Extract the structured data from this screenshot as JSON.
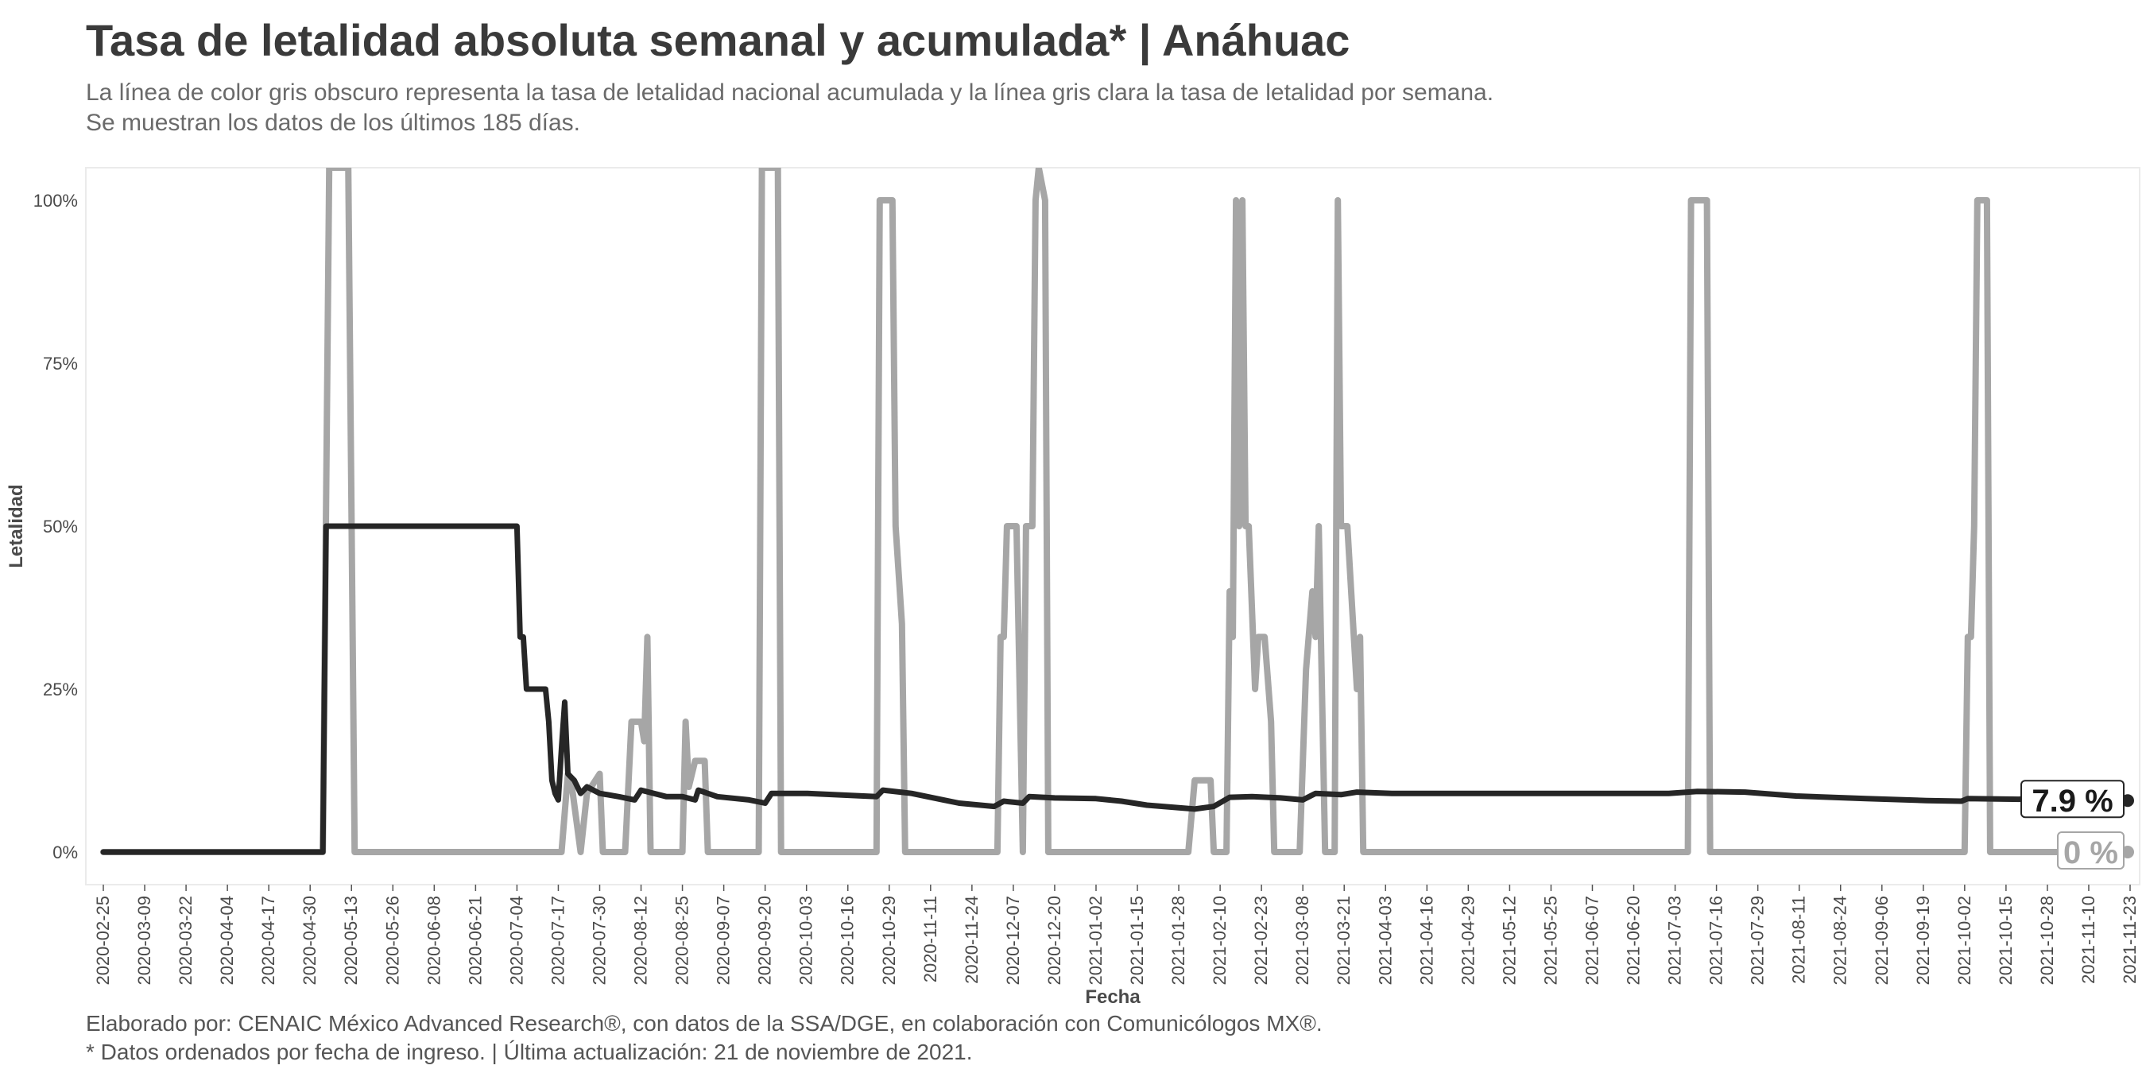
{
  "header": {
    "title": "Tasa de letalidad absoluta semanal y acumulada* | Anáhuac",
    "subtitle_line1": "La línea de color gris obscuro representa la tasa de letalidad nacional acumulada y la línea gris clara la tasa de letalidad por semana.",
    "subtitle_line2": "Se muestran los datos de los últimos 185 días."
  },
  "footer": {
    "line1": "Elaborado por: CENAIC México Advanced Research®, con datos de la SSA/DGE, en colaboración con Comunicólogos MX®.",
    "line2": "* Datos ordenados por fecha de ingreso. | Última actualización: 21 de noviembre de 2021."
  },
  "chart_data": {
    "type": "line",
    "xlabel": "Fecha",
    "ylabel": "Letalidad",
    "x_start": "2020-02-25",
    "x_end": "2021-11-23",
    "ylim": [
      -5,
      105
    ],
    "y_ticks": [
      0,
      25,
      50,
      75,
      100
    ],
    "y_tick_labels": [
      "0%",
      "25%",
      "50%",
      "75%",
      "100%"
    ],
    "x_tick_labels": [
      "2020-02-25",
      "2020-03-09",
      "2020-03-22",
      "2020-04-04",
      "2020-04-17",
      "2020-04-30",
      "2020-05-13",
      "2020-05-26",
      "2020-06-08",
      "2020-06-21",
      "2020-07-04",
      "2020-07-17",
      "2020-07-30",
      "2020-08-12",
      "2020-08-25",
      "2020-09-07",
      "2020-09-20",
      "2020-10-03",
      "2020-10-16",
      "2020-10-29",
      "2020-11-11",
      "2020-11-24",
      "2020-12-07",
      "2020-12-20",
      "2021-01-02",
      "2021-01-15",
      "2021-01-28",
      "2021-02-10",
      "2021-02-23",
      "2021-03-08",
      "2021-03-21",
      "2021-04-03",
      "2021-04-16",
      "2021-04-29",
      "2021-05-12",
      "2021-05-25",
      "2021-06-07",
      "2021-06-20",
      "2021-07-03",
      "2021-07-16",
      "2021-07-29",
      "2021-08-11",
      "2021-08-24",
      "2021-09-06",
      "2021-09-19",
      "2021-10-02",
      "2021-10-15",
      "2021-10-28",
      "2021-11-10",
      "2021-11-23"
    ],
    "grid": false,
    "colors": {
      "weekly": "#a6a6a6",
      "cumulative": "#262626"
    },
    "series": [
      {
        "key": "weekly",
        "points": [
          [
            "2020-02-25",
            0
          ],
          [
            "2020-05-04",
            0
          ],
          [
            "2020-05-06",
            105
          ],
          [
            "2020-05-12",
            105
          ],
          [
            "2020-05-14",
            0
          ],
          [
            "2020-07-18",
            0
          ],
          [
            "2020-07-20",
            12
          ],
          [
            "2020-07-21",
            11
          ],
          [
            "2020-07-24",
            0
          ],
          [
            "2020-07-26",
            9
          ],
          [
            "2020-07-30",
            12
          ],
          [
            "2020-07-31",
            0
          ],
          [
            "2020-08-07",
            0
          ],
          [
            "2020-08-09",
            20
          ],
          [
            "2020-08-12",
            20
          ],
          [
            "2020-08-13",
            17
          ],
          [
            "2020-08-14",
            33
          ],
          [
            "2020-08-15",
            0
          ],
          [
            "2020-08-25",
            0
          ],
          [
            "2020-08-26",
            20
          ],
          [
            "2020-08-27",
            10
          ],
          [
            "2020-08-29",
            14
          ],
          [
            "2020-09-01",
            14
          ],
          [
            "2020-09-02",
            0
          ],
          [
            "2020-09-18",
            0
          ],
          [
            "2020-09-19",
            105
          ],
          [
            "2020-09-24",
            105
          ],
          [
            "2020-09-25",
            0
          ],
          [
            "2020-10-25",
            0
          ],
          [
            "2020-10-26",
            100
          ],
          [
            "2020-10-30",
            100
          ],
          [
            "2020-10-31",
            50
          ],
          [
            "2020-11-02",
            35
          ],
          [
            "2020-11-03",
            0
          ],
          [
            "2020-12-02",
            0
          ],
          [
            "2020-12-03",
            33
          ],
          [
            "2020-12-04",
            33
          ],
          [
            "2020-12-05",
            50
          ],
          [
            "2020-12-08",
            50
          ],
          [
            "2020-12-10",
            0
          ],
          [
            "2020-12-11",
            50
          ],
          [
            "2020-12-13",
            50
          ],
          [
            "2020-12-14",
            100
          ],
          [
            "2020-12-15",
            105
          ],
          [
            "2020-12-17",
            100
          ],
          [
            "2020-12-18",
            0
          ],
          [
            "2021-01-31",
            0
          ],
          [
            "2021-02-02",
            11
          ],
          [
            "2021-02-07",
            11
          ],
          [
            "2021-02-08",
            0
          ],
          [
            "2021-02-12",
            0
          ],
          [
            "2021-02-13",
            40
          ],
          [
            "2021-02-14",
            33
          ],
          [
            "2021-02-15",
            100
          ],
          [
            "2021-02-16",
            50
          ],
          [
            "2021-02-17",
            100
          ],
          [
            "2021-02-18",
            50
          ],
          [
            "2021-02-19",
            50
          ],
          [
            "2021-02-21",
            25
          ],
          [
            "2021-02-22",
            33
          ],
          [
            "2021-02-24",
            33
          ],
          [
            "2021-02-26",
            20
          ],
          [
            "2021-02-27",
            0
          ],
          [
            "2021-03-07",
            0
          ],
          [
            "2021-03-09",
            28
          ],
          [
            "2021-03-11",
            40
          ],
          [
            "2021-03-12",
            33
          ],
          [
            "2021-03-13",
            50
          ],
          [
            "2021-03-14",
            25
          ],
          [
            "2021-03-15",
            0
          ],
          [
            "2021-03-18",
            0
          ],
          [
            "2021-03-19",
            100
          ],
          [
            "2021-03-20",
            50
          ],
          [
            "2021-03-22",
            50
          ],
          [
            "2021-03-25",
            25
          ],
          [
            "2021-03-26",
            33
          ],
          [
            "2021-03-27",
            0
          ],
          [
            "2021-07-07",
            0
          ],
          [
            "2021-07-08",
            100
          ],
          [
            "2021-07-13",
            100
          ],
          [
            "2021-07-14",
            0
          ],
          [
            "2021-10-02",
            0
          ],
          [
            "2021-10-03",
            33
          ],
          [
            "2021-10-04",
            33
          ],
          [
            "2021-10-05",
            50
          ],
          [
            "2021-10-06",
            100
          ],
          [
            "2021-10-09",
            100
          ],
          [
            "2021-10-10",
            0
          ],
          [
            "2021-11-23",
            0
          ]
        ]
      },
      {
        "key": "cumulative",
        "points": [
          [
            "2020-02-25",
            0
          ],
          [
            "2020-05-04",
            0
          ],
          [
            "2020-05-05",
            50
          ],
          [
            "2020-07-04",
            50
          ],
          [
            "2020-07-05",
            33
          ],
          [
            "2020-07-06",
            33
          ],
          [
            "2020-07-07",
            25
          ],
          [
            "2020-07-13",
            25
          ],
          [
            "2020-07-14",
            20
          ],
          [
            "2020-07-15",
            11
          ],
          [
            "2020-07-16",
            9
          ],
          [
            "2020-07-17",
            8
          ],
          [
            "2020-07-18",
            16
          ],
          [
            "2020-07-19",
            23
          ],
          [
            "2020-07-20",
            12
          ],
          [
            "2020-07-22",
            11
          ],
          [
            "2020-07-24",
            9
          ],
          [
            "2020-07-26",
            10
          ],
          [
            "2020-07-30",
            9
          ],
          [
            "2020-08-05",
            8.5
          ],
          [
            "2020-08-10",
            8
          ],
          [
            "2020-08-12",
            9.5
          ],
          [
            "2020-08-20",
            8.5
          ],
          [
            "2020-08-25",
            8.5
          ],
          [
            "2020-08-29",
            8
          ],
          [
            "2020-08-30",
            9.5
          ],
          [
            "2020-09-05",
            8.5
          ],
          [
            "2020-09-15",
            8
          ],
          [
            "2020-09-20",
            7.5
          ],
          [
            "2020-09-22",
            9
          ],
          [
            "2020-10-03",
            9
          ],
          [
            "2020-10-25",
            8.5
          ],
          [
            "2020-10-27",
            9.5
          ],
          [
            "2020-11-05",
            9
          ],
          [
            "2020-11-15",
            8
          ],
          [
            "2020-11-20",
            7.5
          ],
          [
            "2020-12-01",
            7
          ],
          [
            "2020-12-04",
            7.8
          ],
          [
            "2020-12-10",
            7.5
          ],
          [
            "2020-12-12",
            8.5
          ],
          [
            "2020-12-20",
            8.3
          ],
          [
            "2021-01-02",
            8.2
          ],
          [
            "2021-01-10",
            7.8
          ],
          [
            "2021-01-18",
            7.2
          ],
          [
            "2021-01-28",
            6.8
          ],
          [
            "2021-02-02",
            6.6
          ],
          [
            "2021-02-08",
            7
          ],
          [
            "2021-02-13",
            8.4
          ],
          [
            "2021-02-20",
            8.5
          ],
          [
            "2021-03-01",
            8.3
          ],
          [
            "2021-03-08",
            8
          ],
          [
            "2021-03-12",
            9
          ],
          [
            "2021-03-20",
            8.8
          ],
          [
            "2021-03-25",
            9.2
          ],
          [
            "2021-04-05",
            9
          ],
          [
            "2021-05-01",
            9
          ],
          [
            "2021-06-01",
            9
          ],
          [
            "2021-07-01",
            9
          ],
          [
            "2021-07-10",
            9.3
          ],
          [
            "2021-07-25",
            9.2
          ],
          [
            "2021-08-10",
            8.6
          ],
          [
            "2021-09-01",
            8.2
          ],
          [
            "2021-09-20",
            7.9
          ],
          [
            "2021-10-01",
            7.8
          ],
          [
            "2021-10-03",
            8.2
          ],
          [
            "2021-11-23",
            7.9
          ]
        ]
      }
    ],
    "end_labels": [
      {
        "key": "cumulative",
        "text": "7.9 %",
        "value": 7.9
      },
      {
        "key": "weekly",
        "text": "0 %",
        "value": 0
      }
    ]
  }
}
